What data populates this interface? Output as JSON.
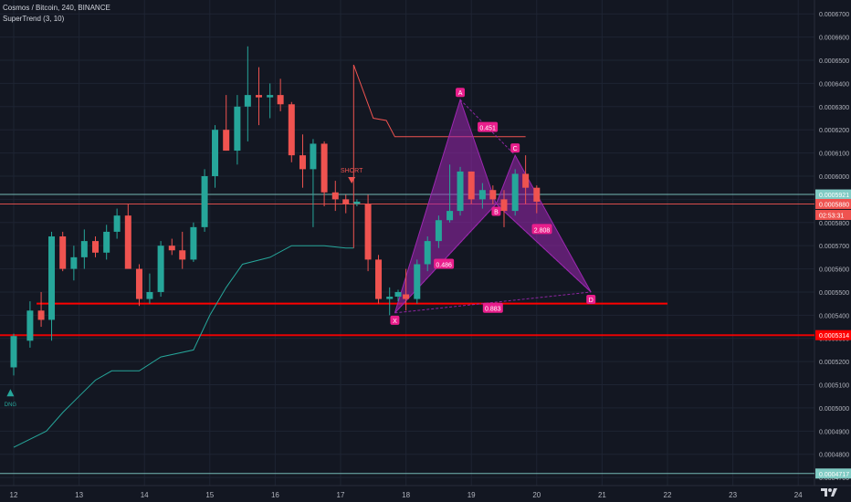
{
  "header": {
    "title": "Cosmos / Bitcoin, 240, BINANCE",
    "indicator": "SuperTrend (3, 10)"
  },
  "colors": {
    "background": "#131722",
    "grid": "#1e2433",
    "up": "#26a69a",
    "down": "#ef5350",
    "supertrend_up": "#26a69a",
    "supertrend_down": "#ef5350",
    "pattern_fill": "#9c27b0",
    "pattern_label": "#e91e8c",
    "level_red": "#ff0000",
    "level_teal": "#80cbc4"
  },
  "chart_data": {
    "type": "candlestick",
    "symbol": "Cosmos / Bitcoin",
    "interval": "240",
    "exchange": "BINANCE",
    "x_ticks": [
      "12",
      "13",
      "14",
      "15",
      "16",
      "17",
      "18",
      "19",
      "20",
      "21",
      "22",
      "23",
      "24"
    ],
    "y_ticks": [
      "0.0006700",
      "0.0006600",
      "0.0006500",
      "0.0006400",
      "0.0006300",
      "0.0006200",
      "0.0006100",
      "0.0006000",
      "0.0005900",
      "0.0005800",
      "0.0005700",
      "0.0005600",
      "0.0005500",
      "0.0005400",
      "0.0005300",
      "0.0005200",
      "0.0005100",
      "0.0005000",
      "0.0004900",
      "0.0004800",
      "0.0004700"
    ],
    "ylim": [
      0.0004665,
      0.000676
    ],
    "candles": [
      {
        "t": 12.0,
        "o": 0.0005175,
        "h": 0.000532,
        "l": 0.000514,
        "c": 0.000531
      },
      {
        "t": 12.25,
        "o": 0.000529,
        "h": 0.000546,
        "l": 0.000526,
        "c": 0.000542
      },
      {
        "t": 12.42,
        "o": 0.000542,
        "h": 0.00055,
        "l": 0.000535,
        "c": 0.000538
      },
      {
        "t": 12.58,
        "o": 0.000538,
        "h": 0.000576,
        "l": 0.000529,
        "c": 0.000574
      },
      {
        "t": 12.75,
        "o": 0.000574,
        "h": 0.000576,
        "l": 0.000559,
        "c": 0.00056
      },
      {
        "t": 12.92,
        "o": 0.00056,
        "h": 0.00057,
        "l": 0.000555,
        "c": 0.000565
      },
      {
        "t": 13.08,
        "o": 0.000565,
        "h": 0.000577,
        "l": 0.00056,
        "c": 0.000572
      },
      {
        "t": 13.25,
        "o": 0.000572,
        "h": 0.000574,
        "l": 0.000565,
        "c": 0.000567
      },
      {
        "t": 13.42,
        "o": 0.000567,
        "h": 0.000579,
        "l": 0.000564,
        "c": 0.000576
      },
      {
        "t": 13.58,
        "o": 0.000576,
        "h": 0.000586,
        "l": 0.000573,
        "c": 0.000583
      },
      {
        "t": 13.75,
        "o": 0.000583,
        "h": 0.000588,
        "l": 0.000562,
        "c": 0.00056
      },
      {
        "t": 13.92,
        "o": 0.00056,
        "h": 0.000562,
        "l": 0.000544,
        "c": 0.000547
      },
      {
        "t": 14.08,
        "o": 0.000547,
        "h": 0.000558,
        "l": 0.000545,
        "c": 0.00055
      },
      {
        "t": 14.25,
        "o": 0.00055,
        "h": 0.000572,
        "l": 0.000548,
        "c": 0.00057
      },
      {
        "t": 14.42,
        "o": 0.00057,
        "h": 0.000573,
        "l": 0.000566,
        "c": 0.000568
      },
      {
        "t": 14.58,
        "o": 0.000568,
        "h": 0.000576,
        "l": 0.00056,
        "c": 0.000564
      },
      {
        "t": 14.75,
        "o": 0.000564,
        "h": 0.00058,
        "l": 0.000563,
        "c": 0.000578
      },
      {
        "t": 14.92,
        "o": 0.000578,
        "h": 0.000603,
        "l": 0.000576,
        "c": 0.0006
      },
      {
        "t": 15.08,
        "o": 0.0006,
        "h": 0.000622,
        "l": 0.000595,
        "c": 0.00062
      },
      {
        "t": 15.25,
        "o": 0.00062,
        "h": 0.000635,
        "l": 0.000611,
        "c": 0.000611
      },
      {
        "t": 15.42,
        "o": 0.000611,
        "h": 0.000635,
        "l": 0.000605,
        "c": 0.00063
      },
      {
        "t": 15.58,
        "o": 0.00063,
        "h": 0.000656,
        "l": 0.000615,
        "c": 0.000635
      },
      {
        "t": 15.75,
        "o": 0.000635,
        "h": 0.000647,
        "l": 0.000622,
        "c": 0.000634
      },
      {
        "t": 15.92,
        "o": 0.000634,
        "h": 0.00064,
        "l": 0.000625,
        "c": 0.000635
      },
      {
        "t": 16.08,
        "o": 0.000635,
        "h": 0.000642,
        "l": 0.000628,
        "c": 0.000631
      },
      {
        "t": 16.25,
        "o": 0.000631,
        "h": 0.000632,
        "l": 0.000606,
        "c": 0.000609
      },
      {
        "t": 16.42,
        "o": 0.000609,
        "h": 0.000618,
        "l": 0.000595,
        "c": 0.000603
      },
      {
        "t": 16.58,
        "o": 0.000603,
        "h": 0.000616,
        "l": 0.000578,
        "c": 0.000614
      },
      {
        "t": 16.75,
        "o": 0.000614,
        "h": 0.000615,
        "l": 0.000587,
        "c": 0.000593
      },
      {
        "t": 16.92,
        "o": 0.000593,
        "h": 0.000598,
        "l": 0.000585,
        "c": 0.00059
      },
      {
        "t": 17.08,
        "o": 0.00059,
        "h": 0.000592,
        "l": 0.000584,
        "c": 0.000588
      },
      {
        "t": 17.25,
        "o": 0.000588,
        "h": 0.00059,
        "l": 0.000587,
        "c": 0.000589
      },
      {
        "t": 17.42,
        "o": 0.000588,
        "h": 0.000592,
        "l": 0.000559,
        "c": 0.000564
      },
      {
        "t": 17.58,
        "o": 0.000564,
        "h": 0.000566,
        "l": 0.000545,
        "c": 0.000547
      },
      {
        "t": 17.75,
        "o": 0.000547,
        "h": 0.000552,
        "l": 0.00054,
        "c": 0.000548
      },
      {
        "t": 17.88,
        "o": 0.000548,
        "h": 0.000551,
        "l": 0.000546,
        "c": 0.00055
      },
      {
        "t": 18.0,
        "o": 0.000549,
        "h": 0.00056,
        "l": 0.000542,
        "c": 0.000547
      },
      {
        "t": 18.17,
        "o": 0.000547,
        "h": 0.000564,
        "l": 0.000545,
        "c": 0.000562
      },
      {
        "t": 18.33,
        "o": 0.000562,
        "h": 0.000574,
        "l": 0.000559,
        "c": 0.000572
      },
      {
        "t": 18.5,
        "o": 0.000572,
        "h": 0.000583,
        "l": 0.000569,
        "c": 0.000581
      },
      {
        "t": 18.67,
        "o": 0.000581,
        "h": 0.000605,
        "l": 0.00058,
        "c": 0.000585
      },
      {
        "t": 18.83,
        "o": 0.000585,
        "h": 0.000604,
        "l": 0.000583,
        "c": 0.000602
      },
      {
        "t": 19.0,
        "o": 0.000602,
        "h": 0.000602,
        "l": 0.000588,
        "c": 0.00059
      },
      {
        "t": 19.17,
        "o": 0.00059,
        "h": 0.000597,
        "l": 0.000586,
        "c": 0.000594
      },
      {
        "t": 19.33,
        "o": 0.000594,
        "h": 0.000596,
        "l": 0.000588,
        "c": 0.00059
      },
      {
        "t": 19.5,
        "o": 0.00059,
        "h": 0.000594,
        "l": 0.000578,
        "c": 0.000585
      },
      {
        "t": 19.67,
        "o": 0.000585,
        "h": 0.000603,
        "l": 0.000583,
        "c": 0.000601
      },
      {
        "t": 19.83,
        "o": 0.000601,
        "h": 0.000609,
        "l": 0.000588,
        "c": 0.000595
      },
      {
        "t": 20.0,
        "o": 0.000595,
        "h": 0.000596,
        "l": 0.000584,
        "c": 0.000589
      }
    ],
    "supertrend": [
      {
        "t": 12.0,
        "v": 0.000483
      },
      {
        "t": 12.5,
        "v": 0.00049
      },
      {
        "t": 12.75,
        "v": 0.000498
      },
      {
        "t": 13.0,
        "v": 0.000505
      },
      {
        "t": 13.25,
        "v": 0.000512
      },
      {
        "t": 13.5,
        "v": 0.000516
      },
      {
        "t": 13.92,
        "v": 0.000516
      },
      {
        "t": 14.25,
        "v": 0.000522
      },
      {
        "t": 14.75,
        "v": 0.000525
      },
      {
        "t": 15.0,
        "v": 0.00054
      },
      {
        "t": 15.25,
        "v": 0.000552
      },
      {
        "t": 15.5,
        "v": 0.000562
      },
      {
        "t": 15.92,
        "v": 0.000565
      },
      {
        "t": 16.25,
        "v": 0.00057
      },
      {
        "t": 16.75,
        "v": 0.00057
      },
      {
        "t": 17.08,
        "v": 0.000569
      },
      {
        "t": 17.2,
        "v": 0.000569
      },
      {
        "t": 17.2,
        "v": 0.000648
      },
      {
        "t": 17.5,
        "v": 0.000625
      },
      {
        "t": 17.7,
        "v": 0.000624
      },
      {
        "t": 17.83,
        "v": 0.000617
      },
      {
        "t": 18.5,
        "v": 0.000617
      },
      {
        "t": 19.83,
        "v": 0.000617
      }
    ],
    "levels": [
      {
        "y": 0.0005921,
        "label": "0.0005921",
        "color": "#80cbc4"
      },
      {
        "y": 0.000588,
        "label": "0.0005880",
        "color": "#ef5350"
      },
      {
        "y": 0.0005314,
        "label": "0.0005314",
        "color": "#ff0000"
      },
      {
        "y": 0.0004717,
        "label": "0.0004717",
        "color": "#80cbc4"
      }
    ],
    "countdown": "02:53:31",
    "support_line": {
      "t0": 12.35,
      "t1": 22.0,
      "y": 0.000545
    },
    "harmonic": {
      "points": [
        {
          "name": "X",
          "t": 17.83,
          "y": 0.000541
        },
        {
          "name": "A",
          "t": 18.83,
          "y": 0.000633
        },
        {
          "name": "B",
          "t": 19.38,
          "y": 0.000588
        },
        {
          "name": "C",
          "t": 19.67,
          "y": 0.000609
        },
        {
          "name": "D",
          "t": 20.83,
          "y": 0.00055
        }
      ],
      "ratios": [
        {
          "label": "0.451",
          "t": 19.25,
          "y": 0.000621
        },
        {
          "label": "0.486",
          "t": 18.58,
          "y": 0.000562
        },
        {
          "label": "2.808",
          "t": 20.08,
          "y": 0.000577
        },
        {
          "label": "0.883",
          "t": 19.33,
          "y": 0.000543
        }
      ]
    },
    "signals": [
      {
        "label": "SHORT",
        "t": 17.17,
        "y": 0.0006,
        "direction": "down"
      },
      {
        "label": "DNG",
        "t": 11.95,
        "y": 0.000505,
        "direction": "up"
      }
    ]
  }
}
